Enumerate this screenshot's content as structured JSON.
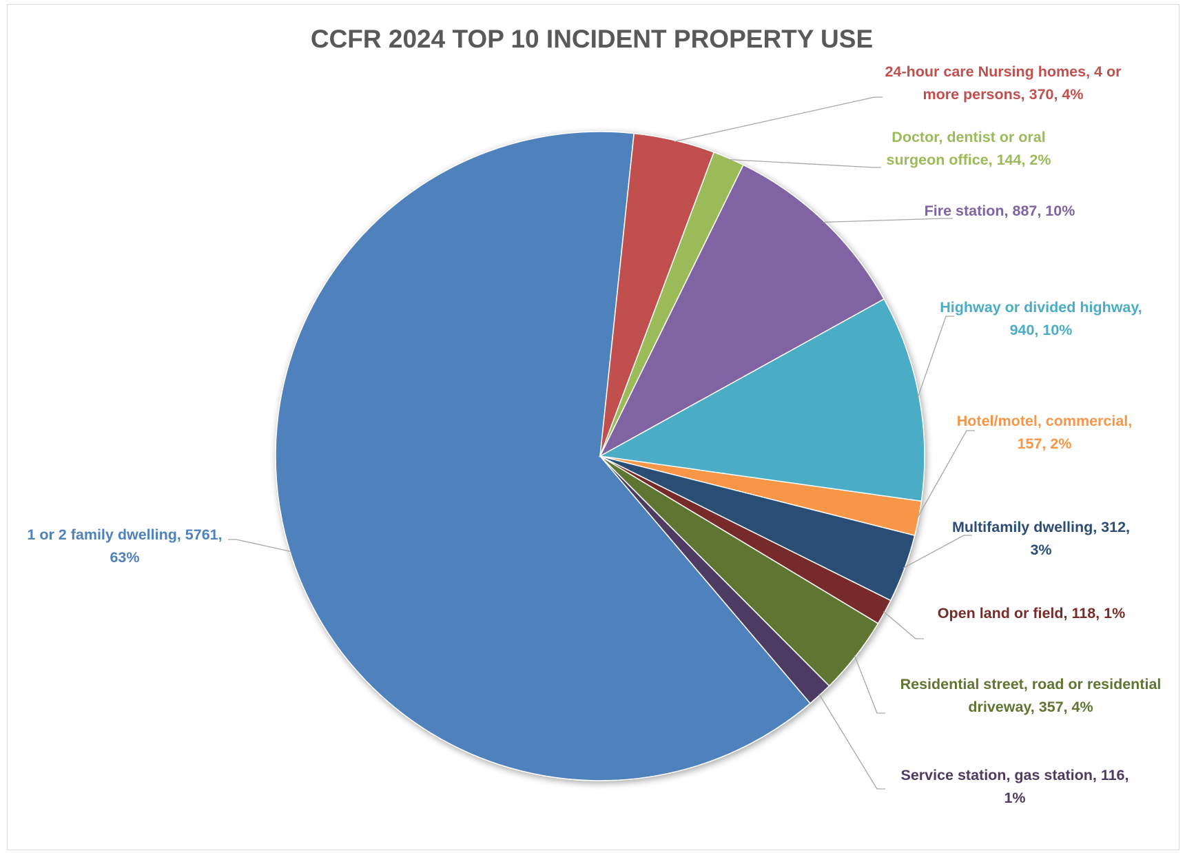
{
  "chart_data": {
    "type": "pie",
    "title": "CCFR 2024 TOP 10 INCIDENT PROPERTY USE",
    "slices": [
      {
        "name": "1 or 2 family dwelling",
        "value": 5761,
        "percent": "63%",
        "color": "#4f81bd",
        "label_lines": [
          "1 or 2 family dwelling, 5761,",
          "63%"
        ]
      },
      {
        "name": "24-hour care Nursing homes, 4 or more persons",
        "value": 370,
        "percent": "4%",
        "color": "#c0504d",
        "label_lines": [
          "24-hour care Nursing homes, 4 or",
          "more persons, 370, 4%"
        ]
      },
      {
        "name": "Doctor, dentist or oral surgeon office",
        "value": 144,
        "percent": "2%",
        "color": "#9bbb59",
        "label_lines": [
          "Doctor, dentist or oral",
          "surgeon office, 144, 2%"
        ]
      },
      {
        "name": "Fire station",
        "value": 887,
        "percent": "10%",
        "color": "#8064a2",
        "label_lines": [
          "Fire station, 887, 10%"
        ]
      },
      {
        "name": "Highway or divided highway",
        "value": 940,
        "percent": "10%",
        "color": "#4bacc6",
        "label_lines": [
          "Highway or divided highway,",
          "940, 10%"
        ]
      },
      {
        "name": "Hotel/motel, commercial",
        "value": 157,
        "percent": "2%",
        "color": "#f79646",
        "label_lines": [
          "Hotel/motel, commercial,",
          "157, 2%"
        ]
      },
      {
        "name": "Multifamily dwelling",
        "value": 312,
        "percent": "3%",
        "color": "#2c4d75",
        "label_lines": [
          "Multifamily dwelling, 312,",
          "3%"
        ]
      },
      {
        "name": "Open land or field",
        "value": 118,
        "percent": "1%",
        "color": "#772c2a",
        "label_lines": [
          "Open land or field, 118, 1%"
        ]
      },
      {
        "name": "Residential street, road or residential driveway",
        "value": 357,
        "percent": "4%",
        "color": "#5f7530",
        "label_lines": [
          "Residential street, road or residential",
          "driveway, 357, 4%"
        ]
      },
      {
        "name": "Service station, gas station",
        "value": 116,
        "percent": "1%",
        "color": "#4d3b62",
        "label_lines": [
          "Service station, gas station, 116,",
          "1%"
        ]
      }
    ]
  }
}
